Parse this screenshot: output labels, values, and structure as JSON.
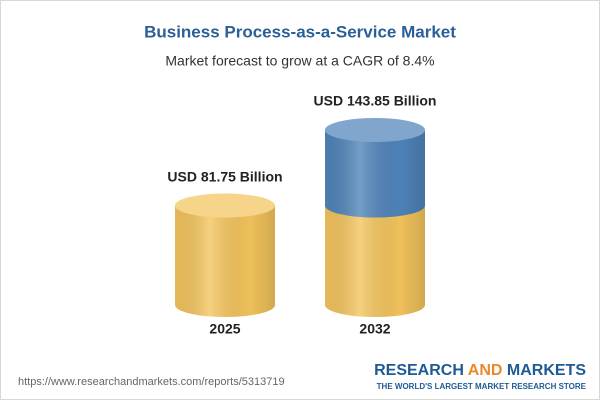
{
  "chart_data": {
    "type": "cylinder",
    "title": "Business Process-as-a-Service Market",
    "subtitle": "Market forecast to grow at a CAGR of 8.4%",
    "categories": [
      "2025",
      "2032"
    ],
    "values": [
      81.75,
      143.85
    ],
    "value_labels": [
      "USD 81.75 Billion",
      "USD 143.85 Billion"
    ],
    "colors": [
      "#f3c45c",
      "#4f84ba"
    ]
  },
  "footer": {
    "url": "https://www.researchandmarkets.com/reports/5313719",
    "brand": [
      "RESEARCH",
      "AND",
      "MARKETS"
    ],
    "tagline": "THE WORLD'S LARGEST MARKET RESEARCH STORE"
  }
}
